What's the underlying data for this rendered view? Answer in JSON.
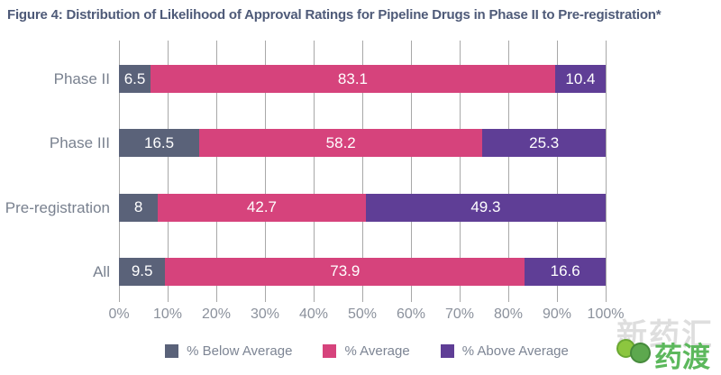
{
  "title": "Figure 4: Distribution of Likelihood of Approval Ratings for Pipeline Drugs in Phase II to Pre-registration*",
  "chart_data": {
    "type": "bar",
    "orientation": "horizontal",
    "stacked": true,
    "title": "Figure 4: Distribution of Likelihood of Approval Ratings for Pipeline Drugs in Phase II to Pre-registration*",
    "categories": [
      "Phase II",
      "Phase III",
      "Pre-registration",
      "All"
    ],
    "series": [
      {
        "name": "% Below Average",
        "color": "#5a6279",
        "values": [
          6.5,
          16.5,
          8,
          9.5
        ]
      },
      {
        "name": "% Average",
        "color": "#d6437c",
        "values": [
          83.1,
          58.2,
          42.7,
          73.9
        ]
      },
      {
        "name": "% Above Average",
        "color": "#5f3e96",
        "values": [
          10.4,
          25.3,
          49.3,
          16.6
        ]
      }
    ],
    "x_axis": {
      "min": 0,
      "max": 100,
      "tick_labels": [
        "0%",
        "10%",
        "20%",
        "30%",
        "40%",
        "50%",
        "60%",
        "70%",
        "80%",
        "90%",
        "100%"
      ]
    },
    "grid": true,
    "gridline_color": "#a8a8a8",
    "legend_position": "bottom",
    "value_label_color": "#ffffff"
  },
  "watermark": {
    "brand_text": "药渡",
    "background_text": "新药汇",
    "brand_color": "#5cb85c"
  }
}
